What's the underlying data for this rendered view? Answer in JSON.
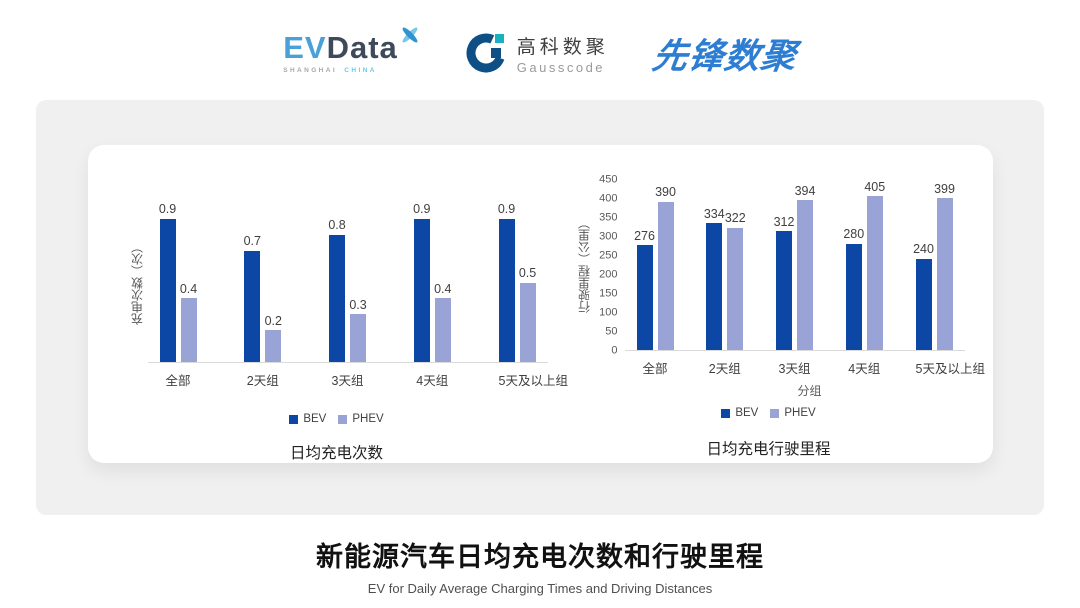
{
  "header": {
    "evdata_logo": {
      "ev": "EV",
      "data": "Data",
      "sub_shanghai": "SHANGHAI",
      "sub_china": "CHINA"
    },
    "gausscode_logo": {
      "name_cn": "高科数聚",
      "name_en": "Gausscode"
    },
    "xianfeng_logo": {
      "text": "先锋数聚"
    }
  },
  "series_colors": [
    "#0d47a6",
    "#9aa3d6"
  ],
  "chart_data": [
    {
      "type": "bar",
      "title": "日均充电次数",
      "ylabel": "充电次数（次）",
      "xlabel": "",
      "categories": [
        "全部",
        "2天组",
        "3天组",
        "4天组",
        "5天及以上组"
      ],
      "series": [
        {
          "name": "BEV",
          "values": [
            0.9,
            0.7,
            0.8,
            0.9,
            0.9
          ]
        },
        {
          "name": "PHEV",
          "values": [
            0.4,
            0.2,
            0.3,
            0.4,
            0.5
          ]
        }
      ],
      "ymax": 1.0,
      "yticks": [],
      "decimals": 1,
      "grid": false,
      "legend_position": "bottom"
    },
    {
      "type": "bar",
      "title": "日均充电行驶里程",
      "ylabel": "行驶里程（公里）",
      "xlabel": "分组",
      "categories": [
        "全部",
        "2天组",
        "3天组",
        "4天组",
        "5天及以上组"
      ],
      "series": [
        {
          "name": "BEV",
          "values": [
            276,
            334,
            312,
            280,
            240
          ]
        },
        {
          "name": "PHEV",
          "values": [
            390,
            322,
            394,
            405,
            399
          ]
        }
      ],
      "ymax": 450,
      "yticks": [
        0,
        50,
        100,
        150,
        200,
        250,
        300,
        350,
        400,
        450
      ],
      "decimals": 0,
      "grid": false,
      "legend_position": "bottom"
    }
  ],
  "footer": {
    "title": "新能源汽车日均充电次数和行驶里程",
    "subtitle": "EV for Daily Average Charging Times and Driving Distances"
  }
}
